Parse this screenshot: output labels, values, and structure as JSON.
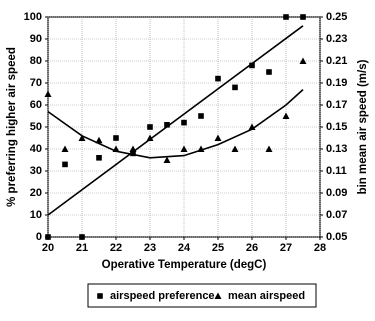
{
  "chart_data": {
    "type": "scatter",
    "xlabel": "Operative Temperature (degC)",
    "ylabel": "% preferring higher air speed",
    "y2label": "bin mean air speed (m/s)",
    "xlim": [
      20,
      28
    ],
    "xticks": [
      20,
      21,
      22,
      23,
      24,
      25,
      26,
      27,
      28
    ],
    "ylim": [
      0,
      100
    ],
    "yticks": [
      0,
      10,
      20,
      30,
      40,
      50,
      60,
      70,
      80,
      90,
      100
    ],
    "y2lim": [
      0.05,
      0.25
    ],
    "y2ticks": [
      0.05,
      0.07,
      0.09,
      0.11,
      0.13,
      0.15,
      0.17,
      0.19,
      0.21,
      0.23,
      0.25
    ],
    "grid": true,
    "legend": "bottom",
    "series": [
      {
        "name": "airspeed preference",
        "color": "#000000",
        "marker": "square",
        "x": [
          20,
          20.5,
          21,
          21.5,
          22,
          22.5,
          23,
          23.5,
          24,
          24.5,
          25,
          25.5,
          26,
          26.5,
          27,
          27.5
        ],
        "values": [
          0,
          33,
          0,
          36,
          45,
          38,
          50,
          51,
          52,
          55,
          72,
          68,
          78,
          75,
          100,
          100
        ]
      },
      {
        "name": "mean airspeed",
        "color": "#000000",
        "marker": "triangle",
        "axis": "y2",
        "x": [
          20,
          20.5,
          21,
          21.5,
          22,
          22.5,
          23,
          23.5,
          24,
          24.5,
          25,
          25.5,
          26,
          26.5,
          27,
          27.5
        ],
        "values": [
          0.18,
          0.13,
          0.14,
          0.138,
          0.13,
          0.13,
          0.14,
          0.12,
          0.13,
          0.13,
          0.14,
          0.13,
          0.15,
          0.13,
          0.16,
          0.21
        ]
      }
    ],
    "trend_lines": [
      {
        "color": "#000000",
        "x": [
          20,
          27.5
        ],
        "values": [
          10,
          96
        ]
      },
      {
        "color": "#000000",
        "axis": "y2",
        "x": [
          20,
          21,
          22,
          23,
          24,
          25,
          26,
          27,
          27.5
        ],
        "values": [
          0.164,
          0.142,
          0.128,
          0.122,
          0.124,
          0.134,
          0.148,
          0.17,
          0.184
        ]
      }
    ]
  }
}
